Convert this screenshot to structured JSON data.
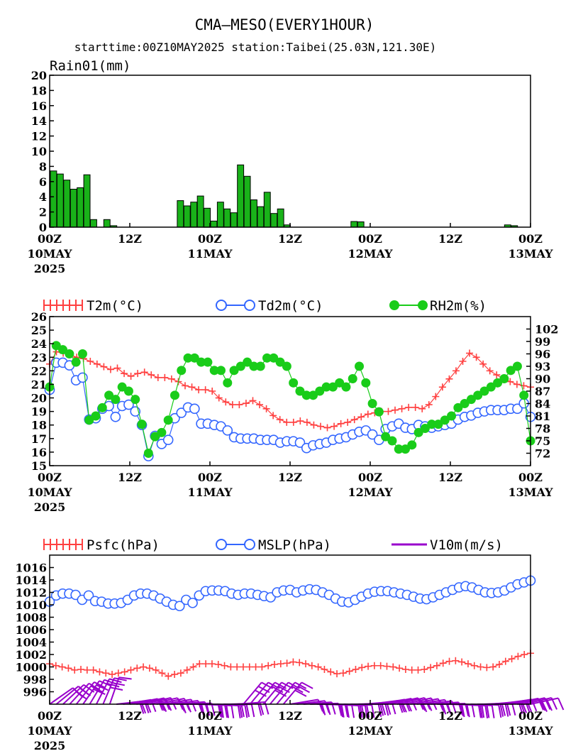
{
  "header": {
    "title": "CMA—MESO(EVERY1HOUR)",
    "subtitle": "starttime:00Z10MAY2025   station:Taibei(25.03N,121.30E)"
  },
  "x_axis": {
    "ticks": [
      "00Z",
      "12Z",
      "00Z",
      "12Z",
      "00Z",
      "12Z",
      "00Z"
    ],
    "dates": [
      {
        "pos": 0,
        "label": "10MAY"
      },
      {
        "pos": 24,
        "label": "11MAY"
      },
      {
        "pos": 48,
        "label": "12MAY"
      },
      {
        "pos": 72,
        "label": "13MAY"
      }
    ],
    "year": "2025"
  },
  "chart_data": [
    {
      "type": "bar",
      "title": "Rain01(mm)",
      "x_unit": "hours since 00Z10MAY2025",
      "ylim": [
        0,
        20
      ],
      "yticks": [
        0,
        2,
        4,
        6,
        8,
        10,
        12,
        14,
        16,
        18,
        20
      ],
      "color": "#19b219",
      "values": [
        7.4,
        7.0,
        6.2,
        5.0,
        5.2,
        6.9,
        1.0,
        0,
        1.0,
        0.2,
        0,
        0,
        0,
        0,
        0,
        0,
        0,
        0,
        0,
        3.5,
        2.8,
        3.3,
        4.1,
        2.5,
        0.8,
        3.3,
        2.4,
        1.9,
        8.2,
        6.7,
        3.6,
        2.7,
        4.6,
        1.8,
        2.4,
        0.3,
        0,
        0,
        0,
        0,
        0,
        0,
        0,
        0,
        0,
        0.75,
        0.7,
        0,
        0,
        0,
        0,
        0,
        0,
        0,
        0,
        0,
        0,
        0,
        0,
        0,
        0,
        0,
        0,
        0,
        0,
        0,
        0,
        0,
        0.3,
        0.2,
        0,
        0,
        0
      ]
    },
    {
      "type": "line",
      "x_unit": "hours since 00Z10MAY2025",
      "ylim_left": [
        15,
        26
      ],
      "yticks_left": [
        15,
        16,
        17,
        18,
        19,
        20,
        21,
        22,
        23,
        24,
        25,
        26
      ],
      "ylim_right": [
        69,
        105
      ],
      "yticks_right": [
        72,
        75,
        78,
        81,
        84,
        87,
        90,
        93,
        96,
        99,
        102
      ],
      "series": [
        {
          "name": "T2m(°C)",
          "axis": "left",
          "color": "#ff4040",
          "marker": "plus",
          "values": [
            22.5,
            23.4,
            23.3,
            23.2,
            23.0,
            22.9,
            22.7,
            22.5,
            22.3,
            22.1,
            22.2,
            21.8,
            21.6,
            21.8,
            21.9,
            21.7,
            21.5,
            21.5,
            21.4,
            21.2,
            20.9,
            20.8,
            20.6,
            20.6,
            20.5,
            20.0,
            19.7,
            19.5,
            19.5,
            19.6,
            19.8,
            19.5,
            19.2,
            18.7,
            18.4,
            18.2,
            18.2,
            18.3,
            18.2,
            18.0,
            17.9,
            17.8,
            17.9,
            18.1,
            18.2,
            18.4,
            18.6,
            18.8,
            18.9,
            19.0,
            19.0,
            19.1,
            19.2,
            19.3,
            19.3,
            19.2,
            19.5,
            20.1,
            20.8,
            21.4,
            22.0,
            22.7,
            23.3,
            23.0,
            22.5,
            22.0,
            21.7,
            21.4,
            21.2,
            21.0,
            20.9,
            20.8
          ]
        },
        {
          "name": "Td2m(°C)",
          "axis": "left",
          "color": "#3366ff",
          "marker": "circle",
          "values": [
            20.6,
            22.6,
            22.6,
            22.4,
            21.3,
            21.5,
            18.4,
            18.5,
            19.2,
            19.4,
            18.6,
            19.4,
            19.5,
            19.0,
            18.0,
            15.7,
            17.2,
            16.6,
            16.9,
            18.5,
            18.9,
            19.3,
            19.2,
            18.1,
            18.1,
            18.0,
            17.9,
            17.6,
            17.1,
            17.0,
            17.0,
            17.0,
            16.9,
            16.9,
            16.9,
            16.7,
            16.8,
            16.8,
            16.7,
            16.3,
            16.5,
            16.6,
            16.7,
            16.9,
            17.0,
            17.1,
            17.3,
            17.5,
            17.6,
            17.3,
            16.9,
            17.7,
            17.9,
            18.1,
            17.8,
            17.7,
            18.0,
            17.9,
            17.8,
            17.9,
            18.0,
            18.1,
            18.4,
            18.6,
            18.7,
            18.9,
            19.0,
            19.1,
            19.1,
            19.1,
            19.2,
            19.2,
            19.6,
            18.6
          ]
        },
        {
          "name": "RH2m(%)",
          "axis": "right",
          "color": "#19cc19",
          "marker": "filled-circle",
          "values": [
            88,
            98,
            97,
            96,
            94,
            96,
            80,
            81,
            83,
            86,
            85,
            88,
            87,
            85,
            79,
            72,
            76,
            77,
            80,
            86,
            92,
            95,
            95,
            94,
            94,
            92,
            92,
            89,
            92,
            93,
            94,
            93,
            93,
            95,
            95,
            94,
            93,
            89,
            87,
            86,
            86,
            87,
            88,
            88,
            89,
            88,
            90,
            93,
            89,
            84,
            82,
            76,
            75,
            73,
            73,
            74,
            77,
            78,
            79,
            79,
            80,
            81,
            83,
            84,
            85,
            86,
            87,
            88,
            89,
            90,
            92,
            93,
            86,
            75
          ]
        }
      ]
    },
    {
      "type": "line",
      "x_unit": "hours since 00Z10MAY2025",
      "ylim": [
        994,
        1018
      ],
      "yticks": [
        996,
        998,
        1000,
        1002,
        1004,
        1006,
        1008,
        1010,
        1012,
        1014,
        1016
      ],
      "series": [
        {
          "name": "Psfc(hPa)",
          "color": "#ff4040",
          "marker": "plus",
          "values": [
            1000.5,
            1000.2,
            1000.0,
            999.8,
            999.5,
            999.6,
            999.5,
            999.5,
            999.2,
            999.0,
            998.8,
            999.0,
            999.2,
            999.5,
            999.8,
            1000.0,
            999.8,
            999.5,
            999.0,
            998.5,
            998.8,
            999.0,
            999.5,
            1000.0,
            1000.5,
            1000.5,
            1000.5,
            1000.4,
            1000.2,
            1000.0,
            1000.0,
            1000.0,
            1000.0,
            1000.0,
            1000.0,
            1000.2,
            1000.4,
            1000.5,
            1000.6,
            1000.8,
            1000.7,
            1000.5,
            1000.2,
            1000.0,
            999.6,
            999.2,
            998.9,
            999.0,
            999.3,
            999.6,
            999.9,
            1000.1,
            1000.2,
            1000.2,
            1000.1,
            1000.0,
            999.8,
            999.6,
            999.5,
            999.5,
            999.6,
            999.9,
            1000.2,
            1000.6,
            1000.9,
            1001.0,
            1000.8,
            1000.5,
            1000.2,
            1000.0,
            999.9,
            1000.0,
            1000.4,
            1000.9,
            1001.3,
            1001.7,
            1002.0,
            1002.2
          ]
        },
        {
          "name": "MSLP(hPa)",
          "color": "#3366ff",
          "marker": "circle",
          "values": [
            1010.5,
            1011.5,
            1011.8,
            1011.8,
            1011.6,
            1010.8,
            1011.5,
            1010.6,
            1010.5,
            1010.2,
            1010.2,
            1010.3,
            1010.8,
            1011.5,
            1011.8,
            1011.8,
            1011.5,
            1011.0,
            1010.5,
            1010.0,
            1009.8,
            1010.8,
            1010.3,
            1011.5,
            1012.2,
            1012.3,
            1012.3,
            1012.2,
            1011.8,
            1011.6,
            1011.8,
            1011.8,
            1011.6,
            1011.4,
            1011.2,
            1012.0,
            1012.3,
            1012.4,
            1012.0,
            1012.3,
            1012.5,
            1012.4,
            1012.0,
            1011.6,
            1011.0,
            1010.5,
            1010.4,
            1010.8,
            1011.3,
            1011.8,
            1012.1,
            1012.2,
            1012.2,
            1012.0,
            1011.8,
            1011.6,
            1011.3,
            1011.0,
            1010.9,
            1011.2,
            1011.6,
            1012.0,
            1012.4,
            1012.8,
            1013.0,
            1012.8,
            1012.4,
            1012.0,
            1011.9,
            1012.0,
            1012.3,
            1012.8,
            1013.3,
            1013.6,
            1013.9
          ]
        },
        {
          "name": "V10m(m/s)",
          "color": "#9900cc",
          "marker": "wind-barb"
        }
      ]
    }
  ],
  "colors": {
    "rain_bar": "#19b219",
    "t2m": "#ff4040",
    "td2m": "#3366ff",
    "rh2m": "#19cc19",
    "psfc": "#ff4040",
    "mslp": "#3366ff",
    "v10m": "#9900cc"
  }
}
